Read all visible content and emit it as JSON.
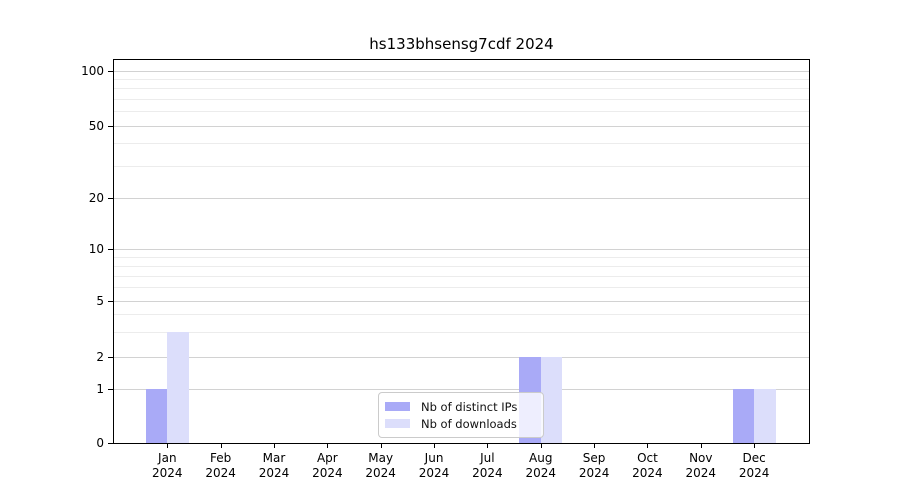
{
  "chart_data": {
    "type": "bar",
    "title": "hs133bhsensg7cdf 2024",
    "categories": [
      "Jan",
      "Feb",
      "Mar",
      "Apr",
      "May",
      "Jun",
      "Jul",
      "Aug",
      "Sep",
      "Oct",
      "Nov",
      "Dec"
    ],
    "category_year": "2024",
    "series": [
      {
        "name": "Nb of distinct IPs",
        "color": "#a9aaf7",
        "values": [
          1,
          0,
          0,
          0,
          0,
          0,
          0,
          2,
          0,
          0,
          0,
          1
        ]
      },
      {
        "name": "Nb of downloads",
        "color": "#dcdefb",
        "values": [
          3,
          0,
          0,
          0,
          0,
          0,
          0,
          2,
          0,
          0,
          0,
          1
        ]
      }
    ],
    "xlabel": "",
    "ylabel": "",
    "yscale": "symlog",
    "ylim": [
      0,
      120
    ],
    "yticks": [
      0,
      1,
      2,
      5,
      10,
      20,
      50,
      100
    ],
    "ytick_minor": [
      3,
      4,
      6,
      7,
      8,
      9,
      30,
      40,
      60,
      70,
      80,
      90
    ],
    "grid": "on",
    "legend_position": "lower-center"
  }
}
